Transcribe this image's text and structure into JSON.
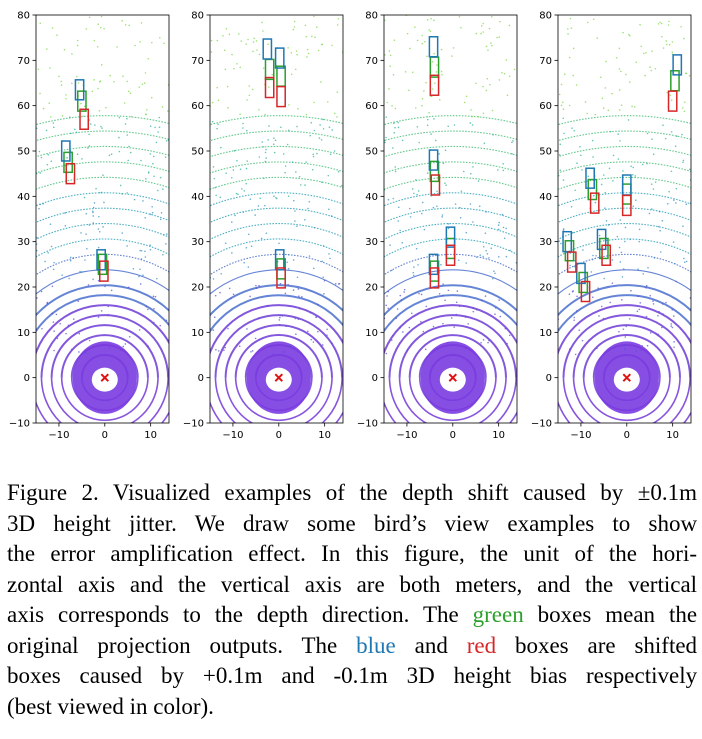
{
  "chart_data": [
    {
      "type": "scatter",
      "title": "",
      "xlabel": "",
      "ylabel": "",
      "xlim": [
        -15,
        14
      ],
      "ylim": [
        -10,
        80
      ],
      "xticks": [
        -10,
        0,
        10
      ],
      "yticks": [
        -10,
        0,
        10,
        20,
        30,
        40,
        50,
        60,
        70,
        80
      ],
      "legend": "none",
      "series": [
        {
          "color": "#2ca02c",
          "values": [
            {
              "x": -5,
              "y": 61
            },
            {
              "x": -8,
              "y": 47.5
            },
            {
              "x": -0.5,
              "y": 25
            }
          ]
        },
        {
          "color": "#1f77b4",
          "values": [
            {
              "x": -5.5,
              "y": 63.5
            },
            {
              "x": -8.5,
              "y": 50
            },
            {
              "x": -0.8,
              "y": 26
            }
          ]
        },
        {
          "color": "#d62728",
          "values": [
            {
              "x": -4.5,
              "y": 57
            },
            {
              "x": -7.5,
              "y": 45
            },
            {
              "x": -0.2,
              "y": 23.5
            }
          ]
        }
      ]
    },
    {
      "type": "scatter",
      "title": "",
      "xlabel": "",
      "ylabel": "",
      "xlim": [
        -15,
        14
      ],
      "ylim": [
        -10,
        80
      ],
      "xticks": [
        -10,
        0,
        10
      ],
      "yticks": [
        -10,
        0,
        10,
        20,
        30,
        40,
        50,
        60,
        70,
        80
      ],
      "legend": "none",
      "series": [
        {
          "color": "#2ca02c",
          "values": [
            {
              "x": -2,
              "y": 68
            },
            {
              "x": 0.5,
              "y": 66.5
            },
            {
              "x": 0.5,
              "y": 24
            }
          ]
        },
        {
          "color": "#1f77b4",
          "values": [
            {
              "x": -2.5,
              "y": 72.5
            },
            {
              "x": 0.2,
              "y": 70.5
            },
            {
              "x": 0.2,
              "y": 26
            }
          ]
        },
        {
          "color": "#d62728",
          "values": [
            {
              "x": -2,
              "y": 64
            },
            {
              "x": 0.5,
              "y": 62
            },
            {
              "x": 0.5,
              "y": 22
            }
          ]
        }
      ]
    },
    {
      "type": "scatter",
      "title": "",
      "xlabel": "",
      "ylabel": "",
      "xlim": [
        -15,
        14
      ],
      "ylim": [
        -10,
        80
      ],
      "xticks": [
        -10,
        0,
        10
      ],
      "yticks": [
        -10,
        0,
        10,
        20,
        30,
        40,
        50,
        60,
        70,
        80
      ],
      "legend": "none",
      "series": [
        {
          "color": "#2ca02c",
          "values": [
            {
              "x": -4,
              "y": 68.5
            },
            {
              "x": -4,
              "y": 45.5
            },
            {
              "x": -0.5,
              "y": 28.5
            },
            {
              "x": -4,
              "y": 23.5
            }
          ]
        },
        {
          "color": "#1f77b4",
          "values": [
            {
              "x": -4.2,
              "y": 73
            },
            {
              "x": -4.2,
              "y": 48
            },
            {
              "x": -0.5,
              "y": 31
            },
            {
              "x": -4.2,
              "y": 25
            }
          ]
        },
        {
          "color": "#d62728",
          "values": [
            {
              "x": -4,
              "y": 64.5
            },
            {
              "x": -3.8,
              "y": 42.5
            },
            {
              "x": -0.5,
              "y": 27
            },
            {
              "x": -4,
              "y": 22
            }
          ]
        }
      ]
    },
    {
      "type": "scatter",
      "title": "",
      "xlabel": "",
      "ylabel": "",
      "xlim": [
        -15,
        14
      ],
      "ylim": [
        -10,
        80
      ],
      "xticks": [
        -10,
        0,
        10
      ],
      "yticks": [
        -10,
        0,
        10,
        20,
        30,
        40,
        50,
        60,
        70,
        80
      ],
      "legend": "none",
      "series": [
        {
          "color": "#2ca02c",
          "values": [
            {
              "x": 10.5,
              "y": 65.5
            },
            {
              "x": -7.5,
              "y": 41.5
            },
            {
              "x": 0,
              "y": 40.5
            },
            {
              "x": -5,
              "y": 28.5
            },
            {
              "x": -12.5,
              "y": 28
            },
            {
              "x": -9.5,
              "y": 21
            }
          ]
        },
        {
          "color": "#1f77b4",
          "values": [
            {
              "x": 11,
              "y": 69
            },
            {
              "x": -8,
              "y": 44
            },
            {
              "x": 0,
              "y": 42.5
            },
            {
              "x": -5.5,
              "y": 30.5
            },
            {
              "x": -13,
              "y": 30
            },
            {
              "x": -10,
              "y": 23
            }
          ]
        },
        {
          "color": "#d62728",
          "values": [
            {
              "x": 10,
              "y": 61
            },
            {
              "x": -7,
              "y": 38.5
            },
            {
              "x": 0,
              "y": 38
            },
            {
              "x": -4.5,
              "y": 27
            },
            {
              "x": -12,
              "y": 25.5
            },
            {
              "x": -9,
              "y": 19
            }
          ]
        }
      ]
    }
  ],
  "caption": {
    "lines": [
      [
        "Figure 2.",
        "Visualized",
        "examples",
        "of",
        "the",
        "depth",
        "shift",
        "caused",
        "by",
        "±0.1m"
      ],
      [
        "3D",
        "height",
        "jitter.",
        "We",
        "draw",
        "some",
        "bird’s",
        "view",
        "examples",
        "to",
        "show"
      ],
      [
        "the",
        "error",
        "amplification",
        "effect.",
        "In",
        "this",
        "figure,",
        "the",
        "unit",
        "of",
        "the",
        "hori-"
      ],
      [
        "zontal",
        "axis",
        "and",
        "the",
        "vertical",
        "axis",
        "are",
        "both",
        "meters,",
        "and",
        "the",
        "vertical"
      ],
      [
        "axis",
        "corresponds",
        "to",
        "the",
        "depth",
        "direction.",
        "The",
        "green",
        "boxes",
        "mean",
        "the"
      ],
      [
        "original",
        "projection",
        "outputs.",
        "The",
        "blue",
        "and",
        "red",
        "boxes",
        "are",
        "shifted"
      ],
      [
        "boxes",
        "caused",
        "by",
        "+0.1m",
        "and",
        "-0.1m",
        "3D",
        "height",
        "bias",
        "respectively"
      ],
      [
        "(best viewed in color)."
      ]
    ],
    "highlight": {
      "green": "#2ca02c",
      "blue": "#1f77b4",
      "red": "#d62728"
    }
  }
}
